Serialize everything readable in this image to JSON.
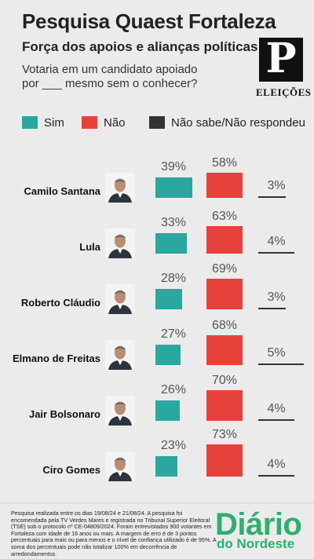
{
  "header": {
    "title": "Pesquisa Quaest Fortaleza",
    "subtitle": "Força dos apoios e alianças políticas",
    "question_line1": "Votaria em um candidato apoiado",
    "question_line2": "por ___ mesmo sem o conhecer?"
  },
  "logo": {
    "mark": "P",
    "label": "ELEIÇÕES"
  },
  "colors": {
    "sim": "#2aa79e",
    "nao": "#e6413a",
    "ns": "#333333",
    "background": "#ebebeb",
    "brand": "#2fae6f"
  },
  "chart_data": {
    "type": "bar",
    "categories": [
      "Camilo Santana",
      "Lula",
      "Roberto Cláudio",
      "Elmano de Freitas",
      "Jair Bolsonaro",
      "Ciro Gomes"
    ],
    "series": [
      {
        "name": "Sim",
        "values": [
          39,
          33,
          28,
          27,
          26,
          23
        ]
      },
      {
        "name": "Não",
        "values": [
          58,
          63,
          69,
          68,
          70,
          73
        ]
      },
      {
        "name": "Não sabe/Não respondeu",
        "values": [
          3,
          4,
          3,
          5,
          4,
          4
        ]
      }
    ],
    "unit": "%",
    "legend_position": "top",
    "labels": {
      "sim": [
        "39%",
        "33%",
        "28%",
        "27%",
        "26%",
        "23%"
      ],
      "nao": [
        "58%",
        "63%",
        "69%",
        "68%",
        "70%",
        "73%"
      ],
      "ns": [
        "3%",
        "4%",
        "3%",
        "5%",
        "4%",
        "4%"
      ]
    }
  },
  "footnote": "Pesquisa realizada entre os dias 19/08/24 e 21/08/24. A pesquisa foi encomendada pela TV Verdes Mares e registrada no Tribunal Superior Eleitoral (TSE) sob o protocolo nº CE-04809/2024. Foram entrevistados 900 votantes em Fortaleza com idade de 16 anos ou mais. A margem de erro é de 3 pontos percentuais para mais ou para menos e o nível de confiança utilizado é de 95%. A soma dos percentuais pode não totalizar 100% em decorrência de arredondamentos.",
  "brand": {
    "line1": "Diário",
    "line2": "do Nordeste"
  }
}
